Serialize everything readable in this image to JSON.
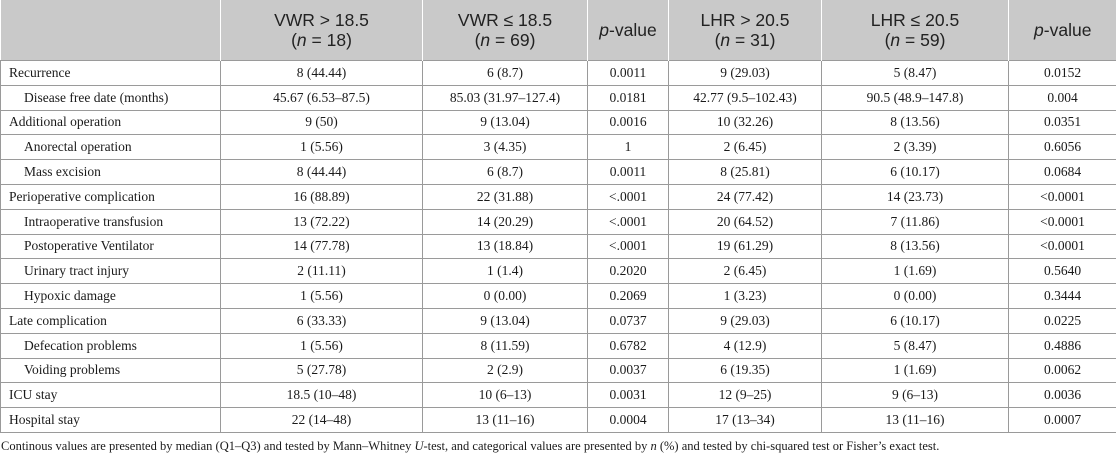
{
  "header": {
    "col0": "",
    "col1_line1": "VWR > 18.5",
    "col1_n": "18",
    "col2_line1": "VWR ≤ 18.5",
    "col2_n": "69",
    "col3_p": "p",
    "col3_rest": "-value",
    "col4_line1": "LHR > 20.5",
    "col4_n": "31",
    "col5_line1": "LHR ≤ 20.5",
    "col5_n": "59",
    "col6_p": "p",
    "col6_rest": "-value",
    "n_letter": "n",
    "n_eq": " = ",
    "open_paren": "(",
    "close_paren": ")"
  },
  "rows": [
    {
      "label": "Recurrence",
      "indent": false,
      "cells": [
        "8 (44.44)",
        "6 (8.7)",
        "0.0011",
        "9 (29.03)",
        "5 (8.47)",
        "0.0152"
      ]
    },
    {
      "label": "Disease free date (months)",
      "indent": true,
      "cells": [
        "45.67 (6.53–87.5)",
        "85.03 (31.97–127.4)",
        "0.0181",
        "42.77 (9.5–102.43)",
        "90.5 (48.9–147.8)",
        "0.004"
      ]
    },
    {
      "label": "Additional operation",
      "indent": false,
      "cells": [
        "9 (50)",
        "9 (13.04)",
        "0.0016",
        "10 (32.26)",
        "8 (13.56)",
        "0.0351"
      ]
    },
    {
      "label": "Anorectal operation",
      "indent": true,
      "cells": [
        "1 (5.56)",
        "3 (4.35)",
        "1",
        "2 (6.45)",
        "2 (3.39)",
        "0.6056"
      ]
    },
    {
      "label": "Mass excision",
      "indent": true,
      "cells": [
        "8 (44.44)",
        "6 (8.7)",
        "0.0011",
        "8 (25.81)",
        "6 (10.17)",
        "0.0684"
      ]
    },
    {
      "label": "Perioperative complication",
      "indent": false,
      "cells": [
        "16 (88.89)",
        "22 (31.88)",
        "<.0001",
        "24 (77.42)",
        "14 (23.73)",
        "<0.0001"
      ]
    },
    {
      "label": "Intraoperative transfusion",
      "indent": true,
      "cells": [
        "13 (72.22)",
        "14 (20.29)",
        "<.0001",
        "20 (64.52)",
        "7 (11.86)",
        "<0.0001"
      ]
    },
    {
      "label": "Postoperative Ventilator",
      "indent": true,
      "cells": [
        "14 (77.78)",
        "13 (18.84)",
        "<.0001",
        "19 (61.29)",
        "8 (13.56)",
        "<0.0001"
      ]
    },
    {
      "label": "Urinary tract injury",
      "indent": true,
      "cells": [
        "2 (11.11)",
        "1 (1.4)",
        "0.2020",
        "2 (6.45)",
        "1 (1.69)",
        "0.5640"
      ]
    },
    {
      "label": "Hypoxic damage",
      "indent": true,
      "cells": [
        "1 (5.56)",
        "0 (0.00)",
        "0.2069",
        "1 (3.23)",
        "0 (0.00)",
        "0.3444"
      ]
    },
    {
      "label": "Late complication",
      "indent": false,
      "cells": [
        "6 (33.33)",
        "9 (13.04)",
        "0.0737",
        "9 (29.03)",
        "6 (10.17)",
        "0.0225"
      ]
    },
    {
      "label": "Defecation problems",
      "indent": true,
      "cells": [
        "1 (5.56)",
        "8 (11.59)",
        "0.6782",
        "4 (12.9)",
        "5 (8.47)",
        "0.4886"
      ]
    },
    {
      "label": "Voiding problems",
      "indent": true,
      "cells": [
        "5 (27.78)",
        "2 (2.9)",
        "0.0037",
        "6 (19.35)",
        "1 (1.69)",
        "0.0062"
      ]
    },
    {
      "label": "ICU stay",
      "indent": false,
      "cells": [
        "18.5 (10–48)",
        "10 (6–13)",
        "0.0031",
        "12 (9–25)",
        "9 (6–13)",
        "0.0036"
      ]
    },
    {
      "label": "Hospital stay",
      "indent": false,
      "cells": [
        "22 (14–48)",
        "13 (11–16)",
        "0.0004",
        "17 (13–34)",
        "13 (11–16)",
        "0.0007"
      ]
    }
  ],
  "footnote": {
    "part1": "Continous values are presented by median (Q1–Q3) and tested by Mann–Whitney ",
    "part2": "U",
    "part3": "-test, and categorical values are presented by ",
    "part4": "n",
    "part5": " (%) and tested by chi-squared test or Fisher’s exact test."
  }
}
